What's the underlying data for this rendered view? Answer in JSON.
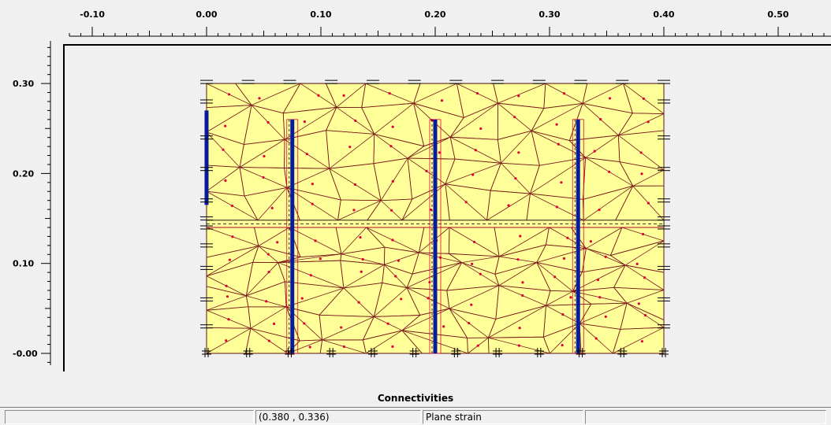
{
  "ruler": {
    "x_ticks": [
      {
        "value": -0.1,
        "label": "-0.10"
      },
      {
        "value": 0.0,
        "label": "0.00"
      },
      {
        "value": 0.1,
        "label": "0.10"
      },
      {
        "value": 0.2,
        "label": "0.20"
      },
      {
        "value": 0.3,
        "label": "0.30"
      },
      {
        "value": 0.4,
        "label": "0.40"
      },
      {
        "value": 0.5,
        "label": "0.50"
      }
    ],
    "y_ticks": [
      {
        "value": 0.3,
        "label": "0.30"
      },
      {
        "value": 0.2,
        "label": "0.20"
      },
      {
        "value": 0.1,
        "label": "0.10"
      },
      {
        "value": 0.0,
        "label": "-0.00"
      }
    ]
  },
  "model": {
    "soil_color": "#ffff99",
    "mesh_line_color": "#7a1a1a",
    "node_color": "#e0003a",
    "structure_color": "#0a1a9e",
    "model_x_range": [
      0.0,
      0.4
    ],
    "model_y_range": [
      0.0,
      0.3
    ],
    "interface_y": [
      0.14,
      0.148
    ],
    "piles": [
      {
        "x": 0.075,
        "y_bottom": 0.0,
        "y_top": 0.26
      },
      {
        "x": 0.2,
        "y_bottom": 0.0,
        "y_top": 0.26
      },
      {
        "x": 0.325,
        "y_bottom": 0.0,
        "y_top": 0.26
      }
    ],
    "left_wall": {
      "x": 0.0,
      "y_bottom": 0.165,
      "y_top": 0.27
    }
  },
  "status": {
    "title": "Connectivities",
    "coordinates": "(0.380 , 0.336)",
    "analysis_type": "Plane strain",
    "cell_extra": ""
  }
}
